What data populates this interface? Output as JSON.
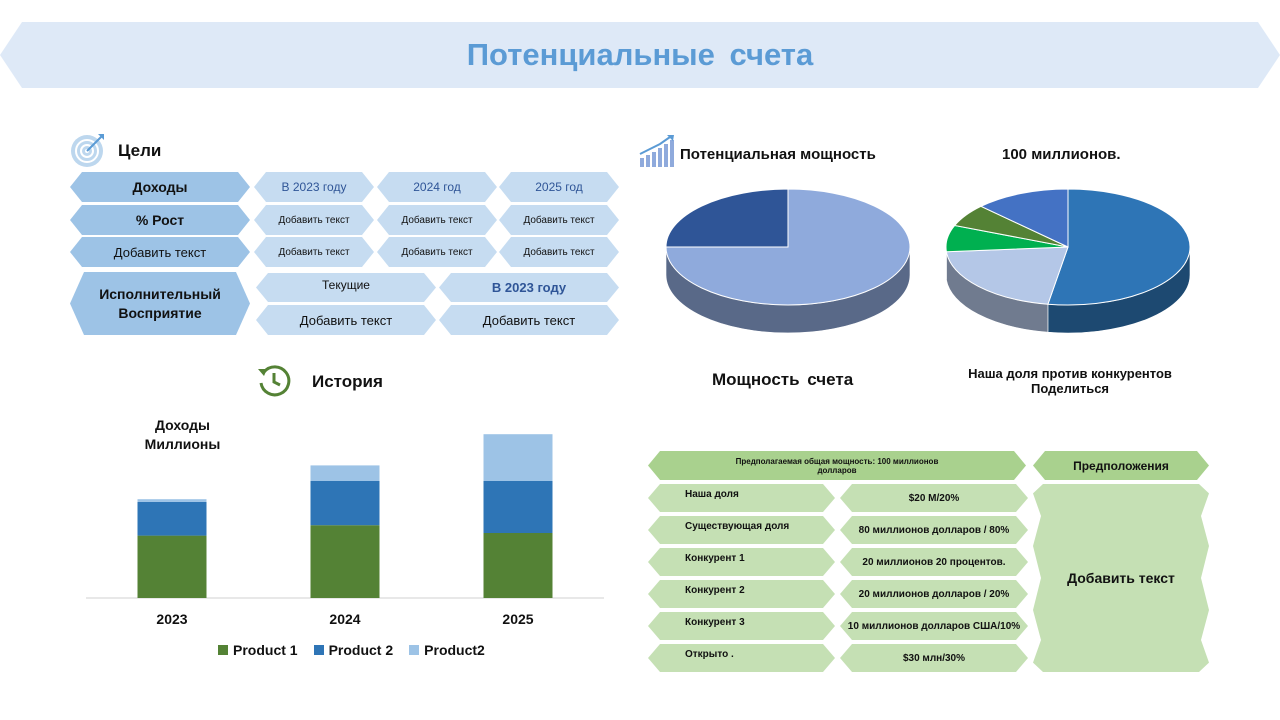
{
  "title": "Потенциальные счета",
  "goals": {
    "heading": "Цели",
    "rows": [
      {
        "label": "Доходы",
        "cells": [
          "В 2023 году",
          "2024 год",
          "2025 год"
        ]
      },
      {
        "label": "% Рост",
        "cells": [
          "Добавить текст",
          "Добавить текст",
          "Добавить текст"
        ]
      },
      {
        "label": "Добавить текст",
        "cells": [
          "Добавить текст",
          "Добавить текст",
          "Добавить текст"
        ]
      }
    ],
    "executive": {
      "label_line1": "Исполнительный",
      "label_line2": "Восприятие",
      "col1_header": "Текущие",
      "col2_header": "В 2023 году",
      "col1_value": "Добавить текст",
      "col2_value": "Добавить текст"
    }
  },
  "potential": {
    "heading": "Потенциальная мощность",
    "caption": "Мощность счета"
  },
  "share": {
    "heading": "100 миллионов.",
    "caption_line1": "Наша доля против конкурентов",
    "caption_line2": "Поделиться"
  },
  "history": {
    "heading": "История",
    "chart_title_line1": "Доходы",
    "chart_title_line2": "Миллионы"
  },
  "table": {
    "header": "Предполагаемая общая мощность: 100 миллионов долларов",
    "assumptions_header": "Предположения",
    "assumptions_text": "Добавить текст",
    "rows": [
      {
        "label": "Наша доля",
        "value": "$20 М/20%"
      },
      {
        "label": "Существующая доля",
        "value": "80 миллионов долларов / 80%"
      },
      {
        "label": "Конкурент 1",
        "value": "20 миллионов 20 процентов."
      },
      {
        "label": "Конкурент 2",
        "value": "20 миллионов долларов / 20%"
      },
      {
        "label": "Конкурент 3",
        "value": "10 миллионов долларов США/10%"
      },
      {
        "label": "Открыто .",
        "value": "$30 млн/30%"
      }
    ]
  },
  "chart_data": [
    {
      "type": "bar",
      "title": "Доходы Миллионы",
      "categories": [
        "2023",
        "2024",
        "2025"
      ],
      "series": [
        {
          "name": "Product 1",
          "color": "#548235",
          "values": [
            2.4,
            2.8,
            2.5
          ]
        },
        {
          "name": "Product 2",
          "color": "#2e75b6",
          "values": [
            1.3,
            1.7,
            2.0
          ]
        },
        {
          "name": "Product2",
          "color": "#9dc3e6",
          "values": [
            0.1,
            0.6,
            1.8
          ]
        }
      ],
      "stacked": true,
      "legend": "bottom",
      "grid": false
    },
    {
      "type": "pie",
      "title": "Потенциальная мощность",
      "values": [
        75,
        25
      ],
      "colors": [
        "#8faadc",
        "#2f5597"
      ]
    },
    {
      "type": "pie",
      "title": "100 миллионов.",
      "values": [
        50,
        20,
        7,
        6,
        12
      ],
      "colors": [
        "#2e75b6",
        "#b4c7e7",
        "#00b050",
        "#548235",
        "#4472c4"
      ]
    }
  ]
}
